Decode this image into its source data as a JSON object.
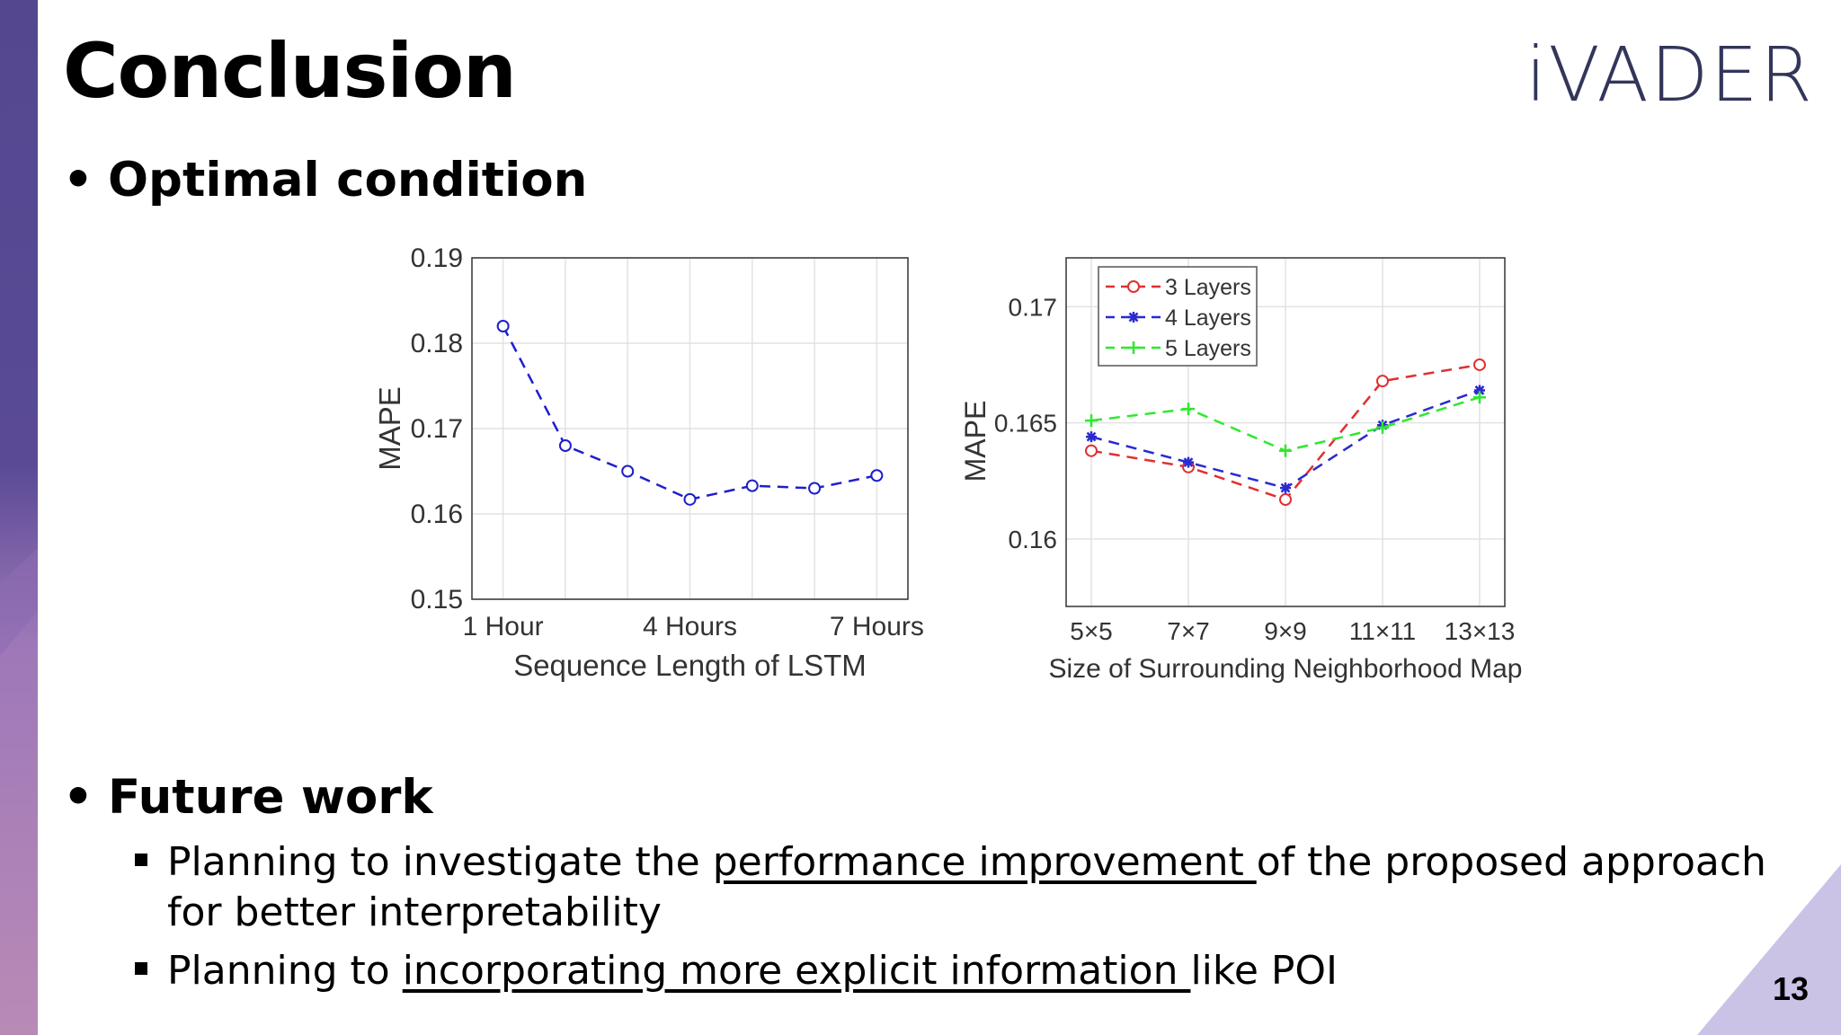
{
  "slide": {
    "title": "Conclusion",
    "logo": "iVADER",
    "page_number": "13",
    "bullet1": "Optimal condition",
    "bullet2": "Future work",
    "sub1_a": "Planning to investigate the ",
    "sub1_u": "performance improvement ",
    "sub1_b": "of the proposed approach for better interpretability",
    "sub2_a": "Planning to ",
    "sub2_u": "incorporating more explicit information ",
    "sub2_b": "like POI"
  },
  "colors": {
    "left_bar_top": "#564a92",
    "left_bar_bottom": "#b486b4",
    "corner": "#c7c0e2"
  },
  "chart_data": [
    {
      "type": "line",
      "xlabel": "Sequence Length of LSTM",
      "ylabel": "MAPE",
      "x": [
        1,
        2,
        3,
        4,
        5,
        6,
        7
      ],
      "xticks": [
        1,
        4,
        7
      ],
      "xtick_labels": [
        "1 Hour",
        "4 Hours",
        "7 Hours"
      ],
      "ylim": [
        0.15,
        0.19
      ],
      "yticks": [
        "0.15",
        "0.16",
        "0.17",
        "0.18",
        "0.19"
      ],
      "grid": true,
      "series": [
        {
          "values": [
            0.182,
            0.168,
            0.165,
            0.1617,
            0.1633,
            0.163,
            0.1645
          ],
          "color": "#1f1fcc",
          "marker": "circle"
        }
      ]
    },
    {
      "type": "line",
      "xlabel": "Size of Surrounding Neighborhood Map",
      "ylabel": "MAPE",
      "categories": [
        "5×5",
        "7×7",
        "9×9",
        "11×11",
        "13×13"
      ],
      "ylim": [
        0.1571,
        0.1721
      ],
      "yticks": [
        "0.16",
        "0.165",
        "0.17"
      ],
      "grid": true,
      "legend": "top-left",
      "series": [
        {
          "name": "3 Layers",
          "values": [
            0.1638,
            0.1631,
            0.1617,
            0.1668,
            0.1675
          ],
          "color": "#e03030",
          "marker": "circle"
        },
        {
          "name": "4 Layers",
          "values": [
            0.1644,
            0.1633,
            0.1622,
            0.1649,
            0.1664
          ],
          "color": "#2a2ad0",
          "marker": "star"
        },
        {
          "name": "5 Layers",
          "values": [
            0.1651,
            0.1656,
            0.1638,
            0.1648,
            0.1661
          ],
          "color": "#2ee82e",
          "marker": "plus"
        }
      ]
    }
  ]
}
